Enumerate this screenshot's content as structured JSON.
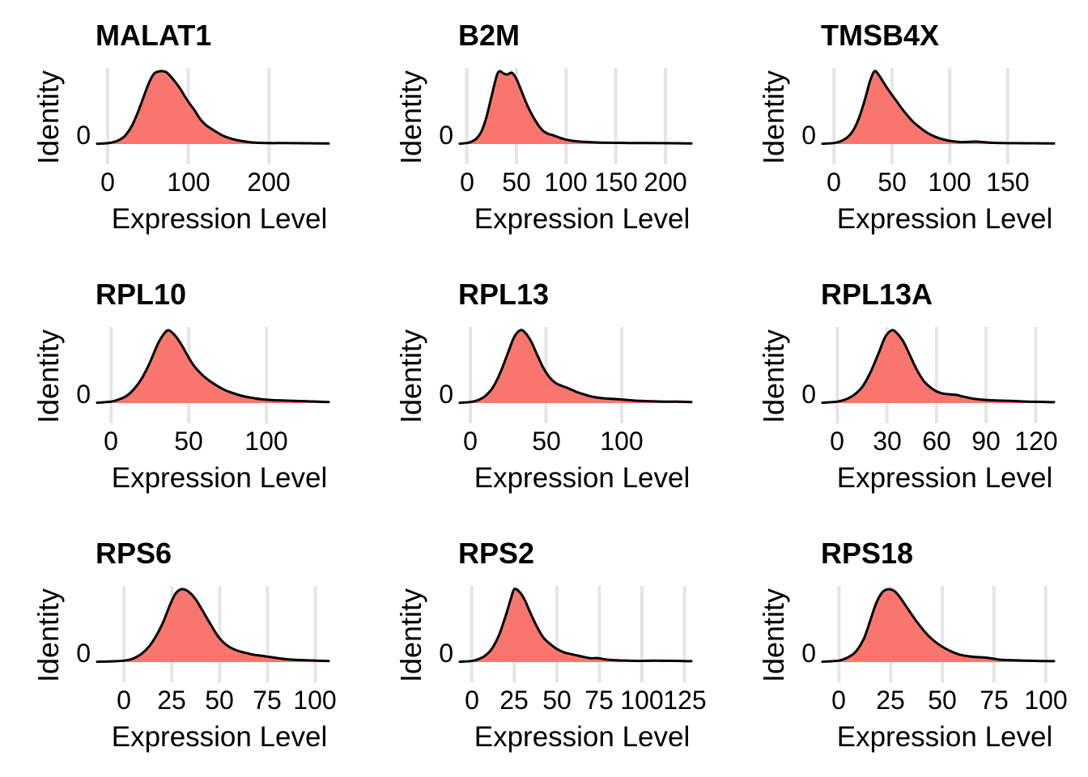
{
  "figure": {
    "xlabel": "Expression Level",
    "ylabel": "Identity",
    "y_zero_label": "0",
    "colors": {
      "fill": "#F8766D",
      "stroke": "#000000",
      "grid": "#E5E5E5",
      "background": "#FFFFFF",
      "text": "#000000"
    }
  },
  "chart_data": [
    {
      "type": "area",
      "title": "MALAT1",
      "xlabel": "Expression Level",
      "ylabel": "Identity",
      "xlim": [
        -13,
        274
      ],
      "xticks": [
        0,
        100,
        200
      ],
      "yticks": [
        0
      ],
      "grid": true,
      "legend": "none",
      "x": [
        -13,
        0,
        8,
        15,
        22,
        30,
        38,
        45,
        52,
        58,
        65,
        72,
        78,
        84,
        90,
        96,
        102,
        108,
        115,
        122,
        128,
        135,
        142,
        150,
        160,
        172,
        185,
        200,
        220,
        245,
        274
      ],
      "density": [
        0.005,
        0.012,
        0.03,
        0.06,
        0.12,
        0.25,
        0.45,
        0.66,
        0.86,
        0.97,
        1.0,
        0.99,
        0.93,
        0.85,
        0.76,
        0.65,
        0.55,
        0.46,
        0.34,
        0.26,
        0.215,
        0.165,
        0.12,
        0.085,
        0.055,
        0.032,
        0.018,
        0.013,
        0.014,
        0.011,
        0.008
      ]
    },
    {
      "type": "area",
      "title": "B2M",
      "xlabel": "Expression Level",
      "ylabel": "Identity",
      "xlim": [
        -7,
        226
      ],
      "xticks": [
        0,
        50,
        100,
        150,
        200
      ],
      "yticks": [
        0
      ],
      "grid": true,
      "legend": "none",
      "x": [
        -7,
        0,
        5,
        10,
        15,
        20,
        25,
        30,
        33,
        37,
        41,
        45,
        49,
        53,
        57,
        62,
        67,
        72,
        77,
        82,
        87,
        93,
        100,
        108,
        118,
        130,
        145,
        162,
        180,
        200,
        226
      ],
      "density": [
        0.005,
        0.015,
        0.035,
        0.08,
        0.18,
        0.38,
        0.66,
        0.93,
        1.0,
        0.97,
        0.955,
        0.98,
        0.92,
        0.8,
        0.66,
        0.5,
        0.37,
        0.26,
        0.18,
        0.14,
        0.12,
        0.09,
        0.06,
        0.042,
        0.03,
        0.022,
        0.018,
        0.015,
        0.014,
        0.012,
        0.008
      ]
    },
    {
      "type": "area",
      "title": "TMSB4X",
      "xlabel": "Expression Level",
      "ylabel": "Identity",
      "xlim": [
        -10,
        190
      ],
      "xticks": [
        0,
        50,
        100,
        150
      ],
      "yticks": [
        0
      ],
      "grid": true,
      "legend": "none",
      "x": [
        -10,
        0,
        6,
        12,
        17,
        22,
        27,
        31,
        35,
        39,
        43,
        48,
        53,
        58,
        63,
        68,
        74,
        80,
        86,
        92,
        98,
        104,
        110,
        116,
        122,
        128,
        136,
        146,
        158,
        172,
        190
      ],
      "density": [
        0.005,
        0.015,
        0.04,
        0.1,
        0.2,
        0.38,
        0.63,
        0.86,
        1.0,
        0.94,
        0.84,
        0.72,
        0.61,
        0.5,
        0.4,
        0.31,
        0.23,
        0.16,
        0.11,
        0.075,
        0.05,
        0.035,
        0.028,
        0.03,
        0.034,
        0.028,
        0.018,
        0.014,
        0.012,
        0.011,
        0.008
      ]
    },
    {
      "type": "area",
      "title": "RPL10",
      "xlabel": "Expression Level",
      "ylabel": "Identity",
      "xlim": [
        -9,
        140
      ],
      "xticks": [
        0,
        50,
        100
      ],
      "yticks": [
        0
      ],
      "grid": true,
      "legend": "none",
      "x": [
        -9,
        0,
        5,
        10,
        15,
        20,
        25,
        30,
        34,
        37,
        41,
        45,
        49,
        53,
        58,
        63,
        68,
        73,
        78,
        84,
        90,
        96,
        103,
        110,
        118,
        126,
        133,
        140
      ],
      "density": [
        0.005,
        0.02,
        0.05,
        0.1,
        0.2,
        0.35,
        0.56,
        0.81,
        0.95,
        1.0,
        0.93,
        0.81,
        0.66,
        0.52,
        0.4,
        0.31,
        0.24,
        0.18,
        0.14,
        0.1,
        0.075,
        0.055,
        0.042,
        0.035,
        0.03,
        0.025,
        0.02,
        0.014
      ]
    },
    {
      "type": "area",
      "title": "RPL13",
      "xlabel": "Expression Level",
      "ylabel": "Identity",
      "xlim": [
        -7,
        146
      ],
      "xticks": [
        0,
        50,
        100
      ],
      "yticks": [
        0
      ],
      "grid": true,
      "legend": "none",
      "x": [
        -7,
        0,
        5,
        10,
        15,
        20,
        25,
        29,
        33,
        36,
        40,
        44,
        48,
        52,
        56,
        60,
        65,
        70,
        75,
        80,
        86,
        92,
        98,
        105,
        112,
        120,
        128,
        137,
        146
      ],
      "density": [
        0.005,
        0.015,
        0.04,
        0.1,
        0.22,
        0.43,
        0.7,
        0.91,
        1.0,
        0.97,
        0.85,
        0.67,
        0.49,
        0.36,
        0.28,
        0.24,
        0.2,
        0.155,
        0.12,
        0.09,
        0.07,
        0.06,
        0.052,
        0.04,
        0.03,
        0.024,
        0.02,
        0.02,
        0.014
      ]
    },
    {
      "type": "area",
      "title": "RPL13A",
      "xlabel": "Expression Level",
      "ylabel": "Identity",
      "xlim": [
        -9,
        131
      ],
      "xticks": [
        0,
        30,
        60,
        90,
        120
      ],
      "yticks": [
        0
      ],
      "grid": true,
      "legend": "none",
      "x": [
        -9,
        0,
        5,
        10,
        15,
        20,
        25,
        29,
        33,
        36,
        40,
        44,
        48,
        52,
        56,
        60,
        64,
        68,
        72,
        76,
        81,
        86,
        92,
        98,
        105,
        112,
        119,
        125,
        131
      ],
      "density": [
        0.005,
        0.02,
        0.05,
        0.11,
        0.22,
        0.42,
        0.69,
        0.91,
        1.0,
        0.96,
        0.84,
        0.65,
        0.46,
        0.31,
        0.22,
        0.16,
        0.13,
        0.12,
        0.112,
        0.09,
        0.065,
        0.05,
        0.04,
        0.034,
        0.03,
        0.022,
        0.018,
        0.016,
        0.012
      ]
    },
    {
      "type": "area",
      "title": "RPS6",
      "xlabel": "Expression Level",
      "ylabel": "Identity",
      "xlim": [
        -14,
        107
      ],
      "xticks": [
        0,
        25,
        50,
        75,
        100
      ],
      "yticks": [
        0
      ],
      "grid": true,
      "legend": "none",
      "x": [
        -14,
        -6,
        0,
        5,
        10,
        15,
        20,
        24,
        27,
        30,
        33,
        37,
        41,
        45,
        49,
        52,
        55,
        59,
        63,
        67,
        71,
        75,
        79,
        84,
        90,
        96,
        101,
        107
      ],
      "density": [
        0.004,
        0.01,
        0.02,
        0.05,
        0.13,
        0.28,
        0.52,
        0.78,
        0.94,
        1.0,
        0.98,
        0.88,
        0.71,
        0.53,
        0.36,
        0.27,
        0.21,
        0.16,
        0.13,
        0.105,
        0.09,
        0.075,
        0.06,
        0.042,
        0.03,
        0.025,
        0.02,
        0.015
      ]
    },
    {
      "type": "area",
      "title": "RPS2",
      "xlabel": "Expression Level",
      "ylabel": "Identity",
      "xlim": [
        -7,
        129
      ],
      "xticks": [
        0,
        25,
        50,
        75,
        100,
        125
      ],
      "yticks": [
        0
      ],
      "grid": true,
      "legend": "none",
      "x": [
        -7,
        0,
        4,
        8,
        12,
        16,
        20,
        23,
        25,
        28,
        31,
        34,
        38,
        42,
        46,
        50,
        54,
        58,
        62,
        66,
        70,
        74,
        79,
        85,
        92,
        99,
        107,
        115,
        122,
        129
      ],
      "density": [
        0.005,
        0.015,
        0.04,
        0.09,
        0.19,
        0.37,
        0.64,
        0.87,
        1.0,
        0.965,
        0.86,
        0.7,
        0.5,
        0.34,
        0.25,
        0.18,
        0.135,
        0.11,
        0.09,
        0.07,
        0.052,
        0.055,
        0.035,
        0.025,
        0.02,
        0.016,
        0.02,
        0.018,
        0.016,
        0.012
      ]
    },
    {
      "type": "area",
      "title": "RPS18",
      "xlabel": "Expression Level",
      "ylabel": "Identity",
      "xlim": [
        -8,
        104
      ],
      "xticks": [
        0,
        25,
        50,
        75,
        100
      ],
      "yticks": [
        0
      ],
      "grid": true,
      "legend": "none",
      "x": [
        -8,
        0,
        4,
        8,
        12,
        15,
        18,
        21,
        24,
        27,
        30,
        34,
        38,
        42,
        46,
        50,
        54,
        58,
        62,
        66,
        70,
        74,
        78,
        84,
        90,
        97,
        104
      ],
      "density": [
        0.005,
        0.02,
        0.06,
        0.14,
        0.32,
        0.56,
        0.81,
        0.96,
        1.0,
        0.97,
        0.87,
        0.7,
        0.54,
        0.4,
        0.29,
        0.21,
        0.15,
        0.105,
        0.082,
        0.07,
        0.064,
        0.05,
        0.032,
        0.025,
        0.02,
        0.015,
        0.012
      ]
    }
  ]
}
